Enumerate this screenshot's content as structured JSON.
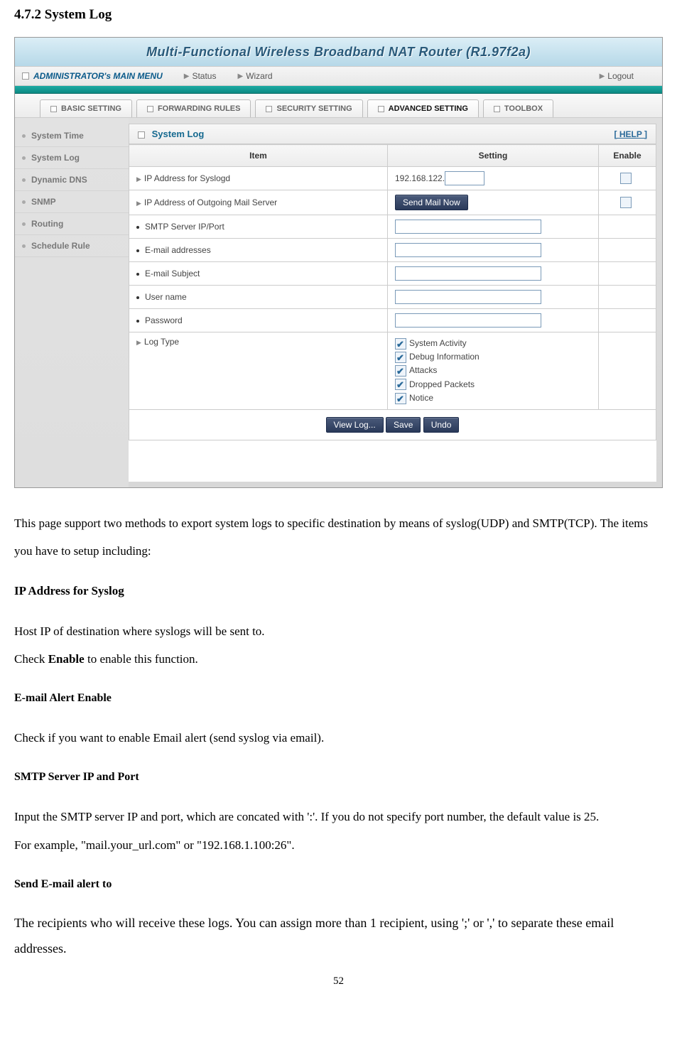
{
  "section_heading": "4.7.2 System Log",
  "router_title": "Multi-Functional Wireless Broadband NAT Router (R1.97f2a)",
  "admin_menu": {
    "label": "ADMINISTRATOR's MAIN MENU",
    "items": [
      "Status",
      "Wizard"
    ],
    "logout": "Logout"
  },
  "tabs": [
    "BASIC SETTING",
    "FORWARDING RULES",
    "SECURITY SETTING",
    "ADVANCED SETTING",
    "TOOLBOX"
  ],
  "active_tab": "ADVANCED SETTING",
  "sidebar": [
    "System Time",
    "System Log",
    "Dynamic DNS",
    "SNMP",
    "Routing",
    "Schedule Rule"
  ],
  "panel": {
    "title": "System Log",
    "help": "[ HELP ]",
    "columns": [
      "Item",
      "Setting",
      "Enable"
    ],
    "rows": {
      "syslog_ip": "IP Address for Syslogd",
      "syslog_prefix": "192.168.122.",
      "mail_ip": "IP Address of Outgoing Mail Server",
      "send_mail_btn": "Send Mail Now",
      "smtp": "SMTP Server IP/Port",
      "email_addr": "E-mail addresses",
      "email_subj": "E-mail Subject",
      "user": "User name",
      "pass": "Password",
      "log_type": "Log Type",
      "log_options": [
        "System Activity",
        "Debug Information",
        "Attacks",
        "Dropped Packets",
        "Notice"
      ]
    },
    "buttons": [
      "View Log...",
      "Save",
      "Undo"
    ]
  },
  "description": {
    "intro": "This page support two methods to export system logs to specific destination by means of syslog(UDP) and SMTP(TCP). The items you have to setup including:",
    "h1": "IP Address for Syslog",
    "p1a": "Host IP of destination where syslogs will be sent to.",
    "p1b_pre": "Check ",
    "p1b_bold": "Enable",
    "p1b_post": " to enable this function.",
    "h2": "E-mail Alert Enable",
    "p2": "Check if you want to enable Email alert (send syslog via email).",
    "h3": "SMTP Server IP and Port",
    "p3a": "Input the SMTP server IP and port, which are concated with ':'. If you do not specify port number, the default value is 25.",
    "p3b": "For example, \"mail.your_url.com\" or \"192.168.1.100:26\".",
    "h4": "Send E-mail alert to",
    "p4": "The recipients who will receive these logs. You can assign more than 1 recipient, using ';' or ',' to separate these email addresses."
  },
  "page_number": "52"
}
